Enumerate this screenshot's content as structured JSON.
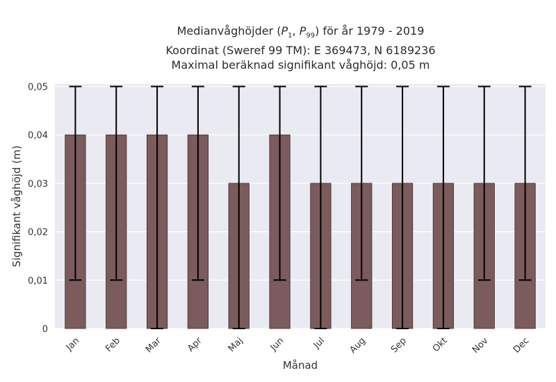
{
  "chart_data": {
    "type": "bar",
    "title_lines": [
      "Medianvåghöjder (P1, P99) för år 1979 - 2019",
      "Koordinat (Sweref 99 TM): E 369473, N 6189236",
      "Maximal beräknad signifikant våghöjd: 0,05 m"
    ],
    "xlabel": "Månad",
    "ylabel": "Signifikant våghöjd (m)",
    "categories": [
      "Jan",
      "Feb",
      "Mar",
      "Apr",
      "Maj",
      "Jun",
      "Jul",
      "Aug",
      "Sep",
      "Okt",
      "Nov",
      "Dec"
    ],
    "values": [
      0.04,
      0.04,
      0.04,
      0.04,
      0.03,
      0.04,
      0.03,
      0.03,
      0.03,
      0.03,
      0.03,
      0.03
    ],
    "error_low": [
      0.01,
      0.01,
      0.0,
      0.01,
      0.0,
      0.01,
      0.0,
      0.01,
      0.0,
      0.0,
      0.01,
      0.01
    ],
    "error_high": [
      0.05,
      0.05,
      0.05,
      0.05,
      0.05,
      0.05,
      0.05,
      0.05,
      0.05,
      0.05,
      0.05,
      0.05
    ],
    "ylim": [
      0,
      0.0505
    ],
    "yticks": [
      0,
      0.01,
      0.02,
      0.03,
      0.04,
      0.05
    ],
    "ytick_labels": [
      "0",
      "0,01",
      "0,02",
      "0,03",
      "0,04",
      "0,05"
    ],
    "grid": true,
    "colors": {
      "bar": "#7b5b5b",
      "bar_edge": "#3f2c2c",
      "errorbar": "#000000",
      "plot_bg": "#eaeaf2",
      "grid": "#ffffff"
    }
  }
}
